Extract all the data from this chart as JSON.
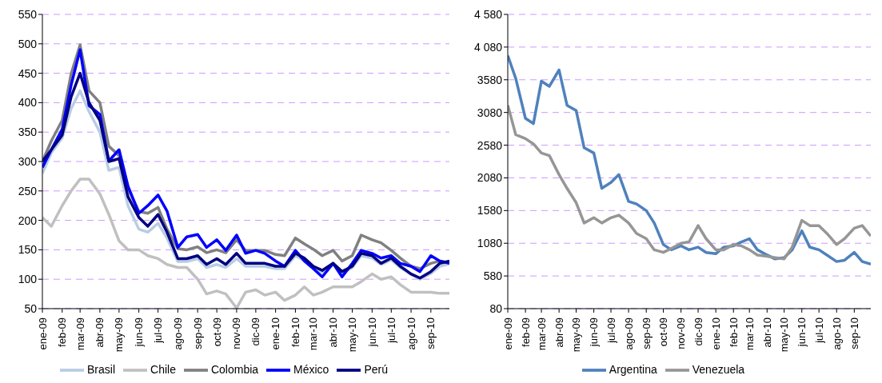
{
  "chart_data": [
    {
      "type": "line",
      "x": [
        "2009-01-01",
        "2009-01-15",
        "2009-02-01",
        "2009-02-15",
        "2009-03-01",
        "2009-03-15",
        "2009-04-01",
        "2009-04-15",
        "2009-05-01",
        "2009-05-15",
        "2009-06-01",
        "2009-06-15",
        "2009-07-01",
        "2009-07-15",
        "2009-08-01",
        "2009-08-15",
        "2009-09-01",
        "2009-09-15",
        "2009-10-01",
        "2009-10-15",
        "2009-11-01",
        "2009-11-15",
        "2009-12-01",
        "2009-12-15",
        "2010-01-01",
        "2010-01-15",
        "2010-02-01",
        "2010-02-15",
        "2010-03-01",
        "2010-03-15",
        "2010-04-01",
        "2010-04-15",
        "2010-05-01",
        "2010-05-15",
        "2010-06-01",
        "2010-06-15",
        "2010-07-01",
        "2010-07-15",
        "2010-08-01",
        "2010-08-15",
        "2010-09-01",
        "2010-09-15",
        "2010-09-30"
      ],
      "series": [
        {
          "name": "Brasil",
          "color": "#b8cce4",
          "values": [
            280,
            315,
            340,
            390,
            420,
            385,
            350,
            285,
            290,
            225,
            185,
            180,
            195,
            170,
            130,
            130,
            135,
            120,
            125,
            120,
            135,
            122,
            122,
            122,
            118,
            118,
            140,
            132,
            120,
            112,
            125,
            110,
            120,
            140,
            136,
            125,
            133,
            120,
            108,
            100,
            110,
            122,
            126
          ]
        },
        {
          "name": "Chile",
          "color": "#c0c0c0",
          "values": [
            205,
            190,
            225,
            250,
            270,
            270,
            245,
            210,
            165,
            150,
            150,
            140,
            135,
            125,
            120,
            120,
            100,
            75,
            80,
            75,
            51,
            78,
            82,
            73,
            78,
            64,
            73,
            87,
            73,
            78,
            87,
            87,
            87,
            96,
            109,
            100,
            104,
            91,
            78,
            78,
            78,
            76,
            76
          ]
        },
        {
          "name": "Colombia",
          "color": "#808080",
          "values": [
            300,
            335,
            370,
            449,
            498,
            420,
            400,
            326,
            310,
            255,
            215,
            212,
            222,
            185,
            152,
            150,
            155,
            145,
            150,
            145,
            167,
            149,
            149,
            149,
            142,
            140,
            170,
            160,
            151,
            140,
            149,
            131,
            140,
            175,
            167,
            162,
            149,
            136,
            122,
            118,
            127,
            131,
            128
          ]
        },
        {
          "name": "México",
          "color": "#0000ff",
          "values": [
            290,
            320,
            355,
            430,
            490,
            395,
            380,
            301,
            320,
            258,
            212,
            225,
            243,
            216,
            154,
            172,
            176,
            154,
            167,
            149,
            175,
            144,
            149,
            144,
            131,
            122,
            149,
            131,
            118,
            104,
            127,
            104,
            127,
            149,
            144,
            136,
            140,
            127,
            122,
            113,
            140,
            131,
            127
          ]
        },
        {
          "name": "Perú",
          "color": "#000080",
          "values": [
            300,
            320,
            345,
            410,
            450,
            400,
            370,
            300,
            305,
            240,
            205,
            190,
            210,
            180,
            135,
            135,
            140,
            125,
            135,
            125,
            144,
            127,
            127,
            127,
            122,
            122,
            144,
            136,
            122,
            115,
            127,
            113,
            122,
            144,
            140,
            127,
            136,
            122,
            109,
            102,
            113,
            127,
            131
          ]
        }
      ],
      "xlim": [
        "2009-01-01",
        "2010-09-30"
      ],
      "xticks": [
        {
          "value": "2009-01-01",
          "label": "ene-09"
        },
        {
          "value": "2009-02-01",
          "label": "feb-09"
        },
        {
          "value": "2009-03-01",
          "label": "mar-09"
        },
        {
          "value": "2009-04-01",
          "label": "abr-09"
        },
        {
          "value": "2009-05-01",
          "label": "may-09"
        },
        {
          "value": "2009-06-01",
          "label": "jun-09"
        },
        {
          "value": "2009-07-01",
          "label": "jul-09"
        },
        {
          "value": "2009-08-01",
          "label": "ago-09"
        },
        {
          "value": "2009-09-01",
          "label": "sep-09"
        },
        {
          "value": "2009-10-01",
          "label": "oct-09"
        },
        {
          "value": "2009-11-01",
          "label": "nov-09"
        },
        {
          "value": "2009-12-01",
          "label": "dic-09"
        },
        {
          "value": "2010-01-01",
          "label": "ene-10"
        },
        {
          "value": "2010-02-01",
          "label": "feb-10"
        },
        {
          "value": "2010-03-01",
          "label": "mar-10"
        },
        {
          "value": "2010-04-01",
          "label": "abr-10"
        },
        {
          "value": "2010-05-01",
          "label": "may-10"
        },
        {
          "value": "2010-06-01",
          "label": "jun-10"
        },
        {
          "value": "2010-07-01",
          "label": "jul-10"
        },
        {
          "value": "2010-08-01",
          "label": "ago-10"
        },
        {
          "value": "2010-09-01",
          "label": "sep-10"
        }
      ],
      "ylim": [
        50,
        550
      ],
      "yticks": [
        50,
        100,
        150,
        200,
        250,
        300,
        350,
        400,
        450,
        500,
        550
      ],
      "grid": "y",
      "legend": "bottom"
    },
    {
      "type": "line",
      "x": [
        "2009-01-01",
        "2009-01-15",
        "2009-02-01",
        "2009-02-15",
        "2009-03-01",
        "2009-03-15",
        "2009-04-01",
        "2009-04-15",
        "2009-05-01",
        "2009-05-15",
        "2009-06-01",
        "2009-06-15",
        "2009-07-01",
        "2009-07-15",
        "2009-08-01",
        "2009-08-15",
        "2009-09-01",
        "2009-09-15",
        "2009-10-01",
        "2009-10-15",
        "2009-11-01",
        "2009-11-15",
        "2009-12-01",
        "2009-12-15",
        "2010-01-01",
        "2010-01-15",
        "2010-02-01",
        "2010-02-15",
        "2010-03-01",
        "2010-03-15",
        "2010-04-01",
        "2010-04-15",
        "2010-05-01",
        "2010-05-15",
        "2010-06-01",
        "2010-06-15",
        "2010-07-01",
        "2010-07-15",
        "2010-08-01",
        "2010-08-15",
        "2010-09-01",
        "2010-09-15",
        "2010-09-30"
      ],
      "series": [
        {
          "name": "Argentina",
          "color": "#4f81bd",
          "values": [
            3950,
            3600,
            2990,
            2910,
            3560,
            3480,
            3730,
            3190,
            3110,
            2540,
            2460,
            1920,
            2010,
            2130,
            1720,
            1680,
            1580,
            1390,
            1060,
            980,
            1040,
            980,
            1020,
            940,
            920,
            1020,
            1040,
            1100,
            1150,
            980,
            900,
            840,
            860,
            980,
            1270,
            1020,
            980,
            900,
            800,
            820,
            940,
            800,
            760
          ]
        },
        {
          "name": "Venezuela",
          "color": "#969696",
          "values": [
            3190,
            2740,
            2680,
            2600,
            2460,
            2420,
            2130,
            1920,
            1700,
            1390,
            1470,
            1390,
            1470,
            1510,
            1390,
            1230,
            1150,
            980,
            940,
            1000,
            1080,
            1100,
            1350,
            1150,
            980,
            980,
            1060,
            1040,
            980,
            900,
            880,
            860,
            840,
            1020,
            1430,
            1350,
            1350,
            1230,
            1060,
            1150,
            1310,
            1350,
            1190
          ]
        }
      ],
      "xlim": [
        "2009-01-01",
        "2010-09-30"
      ],
      "xticks": [
        {
          "value": "2009-01-01",
          "label": "ene-09"
        },
        {
          "value": "2009-02-01",
          "label": "feb-09"
        },
        {
          "value": "2009-03-01",
          "label": "mar-09"
        },
        {
          "value": "2009-04-01",
          "label": "abr-09"
        },
        {
          "value": "2009-05-01",
          "label": "may-09"
        },
        {
          "value": "2009-06-01",
          "label": "jun-09"
        },
        {
          "value": "2009-07-01",
          "label": "jul-09"
        },
        {
          "value": "2009-08-01",
          "label": "ago-09"
        },
        {
          "value": "2009-09-01",
          "label": "sep-09"
        },
        {
          "value": "2009-10-01",
          "label": "oct-09"
        },
        {
          "value": "2009-11-01",
          "label": "nov-09"
        },
        {
          "value": "2009-12-01",
          "label": "dic-09"
        },
        {
          "value": "2010-01-01",
          "label": "ene-10"
        },
        {
          "value": "2010-02-01",
          "label": "feb-10"
        },
        {
          "value": "2010-03-01",
          "label": "mar-10"
        },
        {
          "value": "2010-04-01",
          "label": "abr-10"
        },
        {
          "value": "2010-05-01",
          "label": "may-10"
        },
        {
          "value": "2010-06-01",
          "label": "jun-10"
        },
        {
          "value": "2010-07-01",
          "label": "jul-10"
        },
        {
          "value": "2010-08-01",
          "label": "ago-10"
        },
        {
          "value": "2010-09-01",
          "label": "sep-10"
        }
      ],
      "ylim": [
        80,
        4580
      ],
      "yticks": [
        80,
        580,
        1080,
        1580,
        2080,
        2580,
        3080,
        3580,
        {
          "value": 4080,
          "label": "4 080"
        },
        {
          "value": 4580,
          "label": "4 580"
        }
      ],
      "grid": "y",
      "legend": "bottom"
    }
  ]
}
